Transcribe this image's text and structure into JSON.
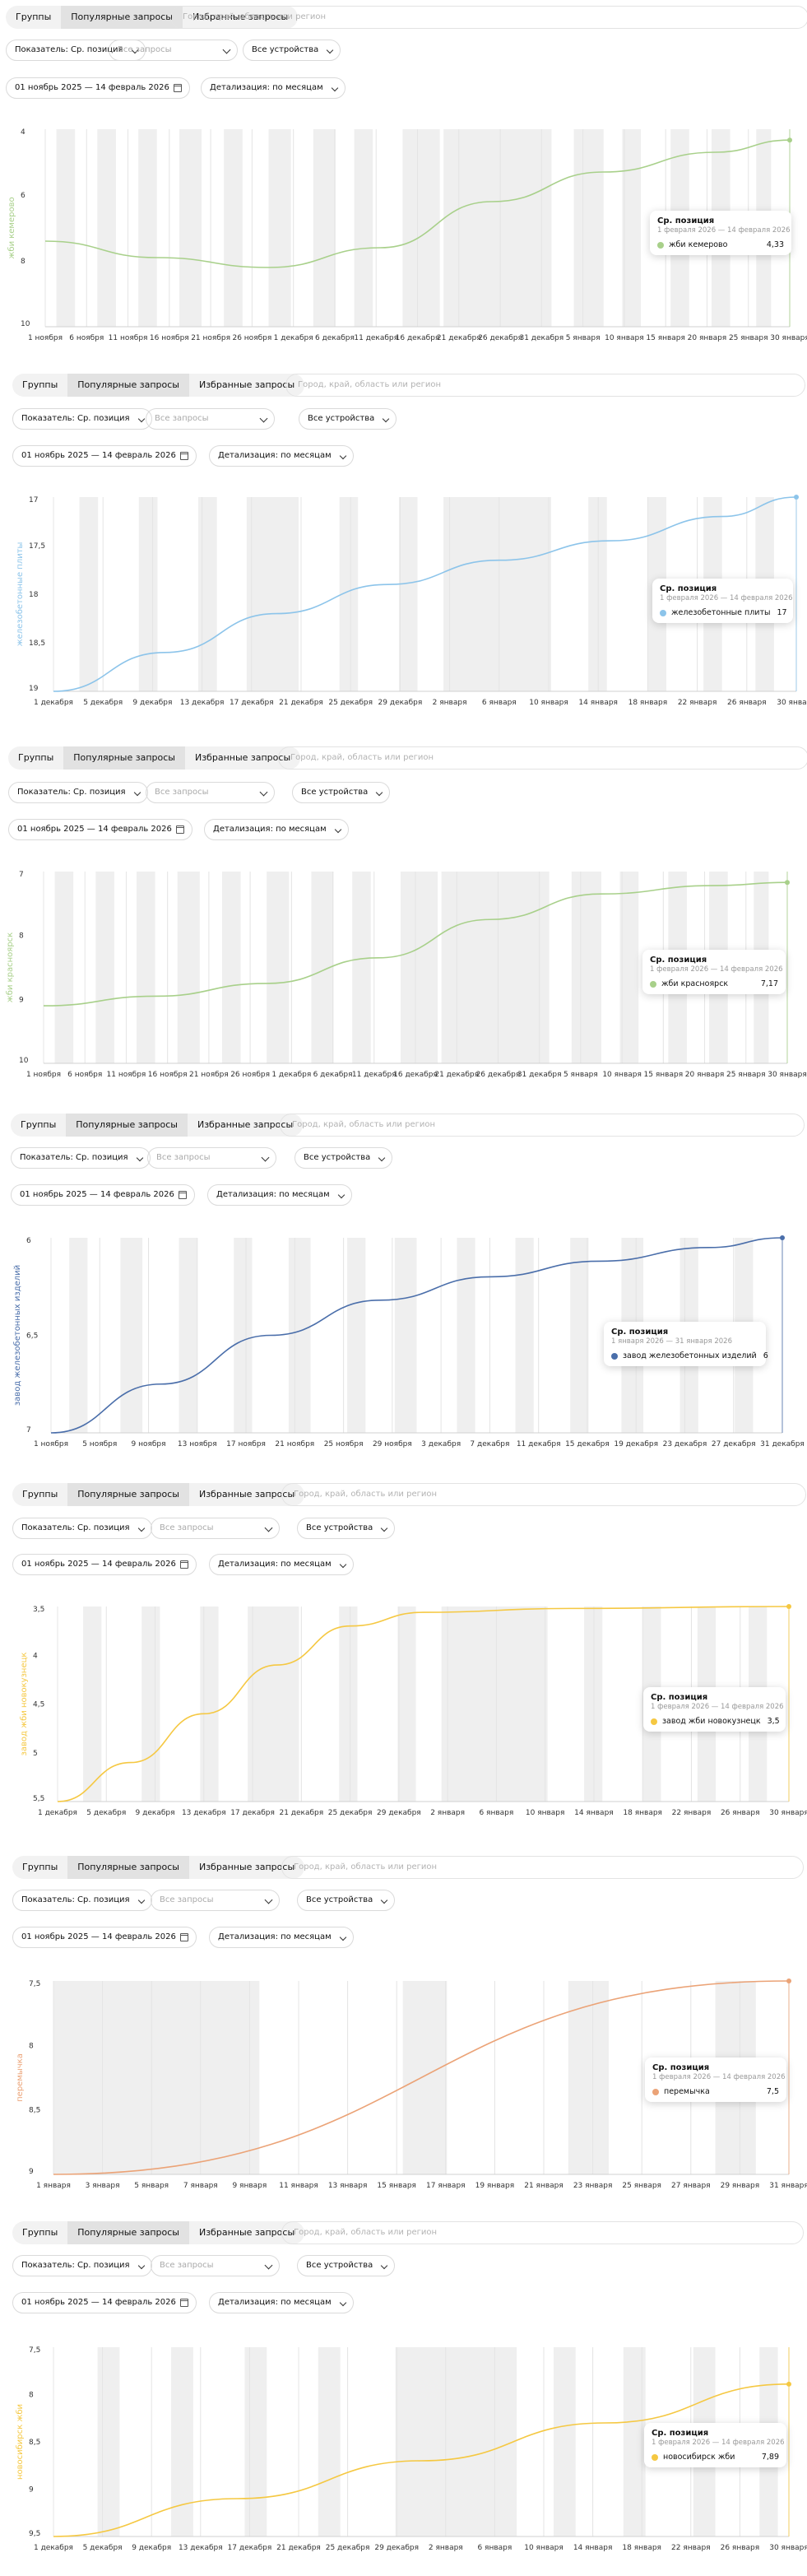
{
  "toolbar": {
    "tabs": [
      "Группы",
      "Популярные запросы",
      "Избранные запросы"
    ],
    "active_tab": 1,
    "search_placeholder": "Город, край, область или регион",
    "metric": "Показатель: Ср. позиция",
    "queries_placeholder": "Все запросы",
    "devices": "Все устройства",
    "date_range": "01 ноябрь 2025 — 14 февраль 2026",
    "detail": "Детализация: по месяцам"
  },
  "panels": [
    {
      "chart_data": {
        "type": "line",
        "ylabel": "жби кемерово",
        "ylim": [
          10,
          4
        ],
        "y_ticks": [
          4,
          6,
          8,
          10
        ],
        "x_labels": [
          "1 ноября",
          "6 ноября",
          "11 ноября",
          "16 ноября",
          "21 ноября",
          "26 ноября",
          "1 декабря",
          "6 декабря",
          "11 декабря",
          "16 декабря",
          "21 декабря",
          "26 декабря",
          "31 декабря",
          "5 января",
          "10 января",
          "15 января",
          "20 января",
          "25 января",
          "30 января"
        ],
        "series": [
          {
            "name": "жби кемерово",
            "color": "#a8d08a",
            "x": [
              0,
              0.15,
              0.3,
              0.45,
              0.6,
              0.75,
              0.9,
              1.0
            ],
            "y": [
              7.4,
              7.9,
              8.2,
              7.6,
              6.2,
              5.3,
              4.7,
              4.33
            ]
          }
        ],
        "tooltip": {
          "title": "Ср. позиция",
          "range": "1 февраля 2026 — 14 февраля 2026",
          "name": "жби кемерово",
          "value": "4,33"
        }
      }
    },
    {
      "chart_data": {
        "type": "line",
        "ylabel": "железобетонные плиты",
        "ylim": [
          19,
          17
        ],
        "y_ticks": [
          17,
          17.5,
          18,
          18.5,
          19
        ],
        "x_labels": [
          "1 декабря",
          "5 декабря",
          "9 декабря",
          "13 декабря",
          "17 декабря",
          "21 декабря",
          "25 декабря",
          "29 декабря",
          "2 января",
          "6 января",
          "10 января",
          "14 января",
          "18 января",
          "22 января",
          "26 января",
          "30 января"
        ],
        "series": [
          {
            "name": "железобетонные плиты",
            "color": "#8cc4ea",
            "x": [
              0,
              0.15,
              0.3,
              0.45,
              0.6,
              0.75,
              0.9,
              1.0
            ],
            "y": [
              19,
              18.6,
              18.2,
              17.9,
              17.65,
              17.45,
              17.2,
              17
            ]
          }
        ],
        "tooltip": {
          "title": "Ср. позиция",
          "range": "1 февраля 2026 — 14 февраля 2026",
          "name": "железобетонные плиты",
          "value": "17"
        }
      }
    },
    {
      "chart_data": {
        "type": "line",
        "ylabel": "жби красноярск",
        "ylim": [
          10,
          7
        ],
        "y_ticks": [
          7,
          8,
          9,
          10
        ],
        "x_labels": [
          "1 ноября",
          "6 ноября",
          "11 ноября",
          "16 ноября",
          "21 ноября",
          "26 ноября",
          "1 декабря",
          "6 декабря",
          "11 декабря",
          "16 декабря",
          "21 декабря",
          "26 декабря",
          "31 декабря",
          "5 января",
          "10 января",
          "15 января",
          "20 января",
          "25 января",
          "30 января"
        ],
        "series": [
          {
            "name": "жби красноярск",
            "color": "#a8d08a",
            "x": [
              0,
              0.15,
              0.3,
              0.45,
              0.6,
              0.75,
              0.9,
              1.0
            ],
            "y": [
              9.1,
              8.95,
              8.75,
              8.35,
              7.75,
              7.35,
              7.22,
              7.17
            ]
          }
        ],
        "tooltip": {
          "title": "Ср. позиция",
          "range": "1 февраля 2026 — 14 февраля 2026",
          "name": "жби красноярск",
          "value": "7,17"
        }
      }
    },
    {
      "chart_data": {
        "type": "line",
        "ylabel": "завод железобетонных изделий",
        "ylim": [
          7,
          6
        ],
        "y_ticks": [
          6,
          6.5,
          7
        ],
        "x_labels": [
          "1 ноября",
          "5 ноября",
          "9 ноября",
          "13 ноября",
          "17 ноября",
          "21 ноября",
          "25 ноября",
          "29 ноября",
          "3 декабря",
          "7 декабря",
          "11 декабря",
          "15 декабря",
          "19 декабря",
          "23 декабря",
          "27 декабря",
          "31 декабря"
        ],
        "series": [
          {
            "name": "завод железобетонных изделий",
            "color": "#4a6eaa",
            "x": [
              0,
              0.15,
              0.3,
              0.45,
              0.6,
              0.75,
              0.9,
              1.0
            ],
            "y": [
              7,
              6.75,
              6.5,
              6.32,
              6.2,
              6.12,
              6.05,
              6
            ]
          }
        ],
        "tooltip": {
          "title": "Ср. позиция",
          "range": "1 января 2026 — 31 января 2026",
          "name": "завод железобетонных изделий",
          "value": "6"
        }
      }
    },
    {
      "chart_data": {
        "type": "line",
        "ylabel": "завод жби новокузнецк",
        "ylim": [
          5.5,
          3.5
        ],
        "y_ticks": [
          3.5,
          4,
          4.5,
          5,
          5.5
        ],
        "x_labels": [
          "1 декабря",
          "5 декабря",
          "9 декабря",
          "13 декабря",
          "17 декабря",
          "21 декабря",
          "25 декабря",
          "29 декабря",
          "2 января",
          "6 января",
          "10 января",
          "14 января",
          "18 января",
          "22 января",
          "26 января",
          "30 января"
        ],
        "series": [
          {
            "name": "завод жби новокузнецк",
            "color": "#f5c842",
            "x": [
              0,
              0.1,
              0.2,
              0.3,
              0.4,
              0.5,
              0.7,
              1.0
            ],
            "y": [
              5.5,
              5.1,
              4.6,
              4.1,
              3.7,
              3.56,
              3.52,
              3.5
            ]
          }
        ],
        "tooltip": {
          "title": "Ср. позиция",
          "range": "1 февраля 2026 — 14 февраля 2026",
          "name": "завод жби новокузнецк",
          "value": "3,5"
        }
      }
    },
    {
      "chart_data": {
        "type": "line",
        "ylabel": "перемычка",
        "ylim": [
          9,
          7.5
        ],
        "y_ticks": [
          7.5,
          8,
          8.5,
          9
        ],
        "x_labels": [
          "1 января",
          "3 января",
          "5 января",
          "7 января",
          "9 января",
          "11 января",
          "13 января",
          "15 января",
          "17 января",
          "19 января",
          "21 января",
          "23 января",
          "25 января",
          "27 января",
          "29 января",
          "31 января"
        ],
        "series": [
          {
            "name": "перемычка",
            "color": "#eba377",
            "x": [
              0,
              1
            ],
            "y": [
              9,
              7.5
            ]
          }
        ],
        "tooltip": {
          "title": "Ср. позиция",
          "range": "1 февраля 2026 — 14 февраля 2026",
          "name": "перемычка",
          "value": "7,5"
        }
      }
    },
    {
      "chart_data": {
        "type": "line",
        "ylabel": "новосибирск жби",
        "ylim": [
          9.5,
          7.5
        ],
        "y_ticks": [
          7.5,
          8,
          8.5,
          9,
          9.5
        ],
        "x_labels": [
          "1 декабря",
          "5 декабря",
          "9 декабря",
          "13 декабря",
          "17 декабря",
          "21 декабря",
          "25 декабря",
          "29 декабря",
          "2 января",
          "6 января",
          "10 января",
          "14 января",
          "18 января",
          "22 января",
          "26 января",
          "30 января"
        ],
        "series": [
          {
            "name": "новосибирск жби",
            "color": "#f5c842",
            "x": [
              0,
              0.25,
              0.5,
              0.75,
              1.0
            ],
            "y": [
              9.5,
              9.1,
              8.7,
              8.3,
              7.89
            ]
          }
        ],
        "tooltip": {
          "title": "Ср. позиция",
          "range": "1 февраля 2026 — 14 февраля 2026",
          "name": "новосибирск жби",
          "value": "7,89"
        }
      }
    }
  ]
}
